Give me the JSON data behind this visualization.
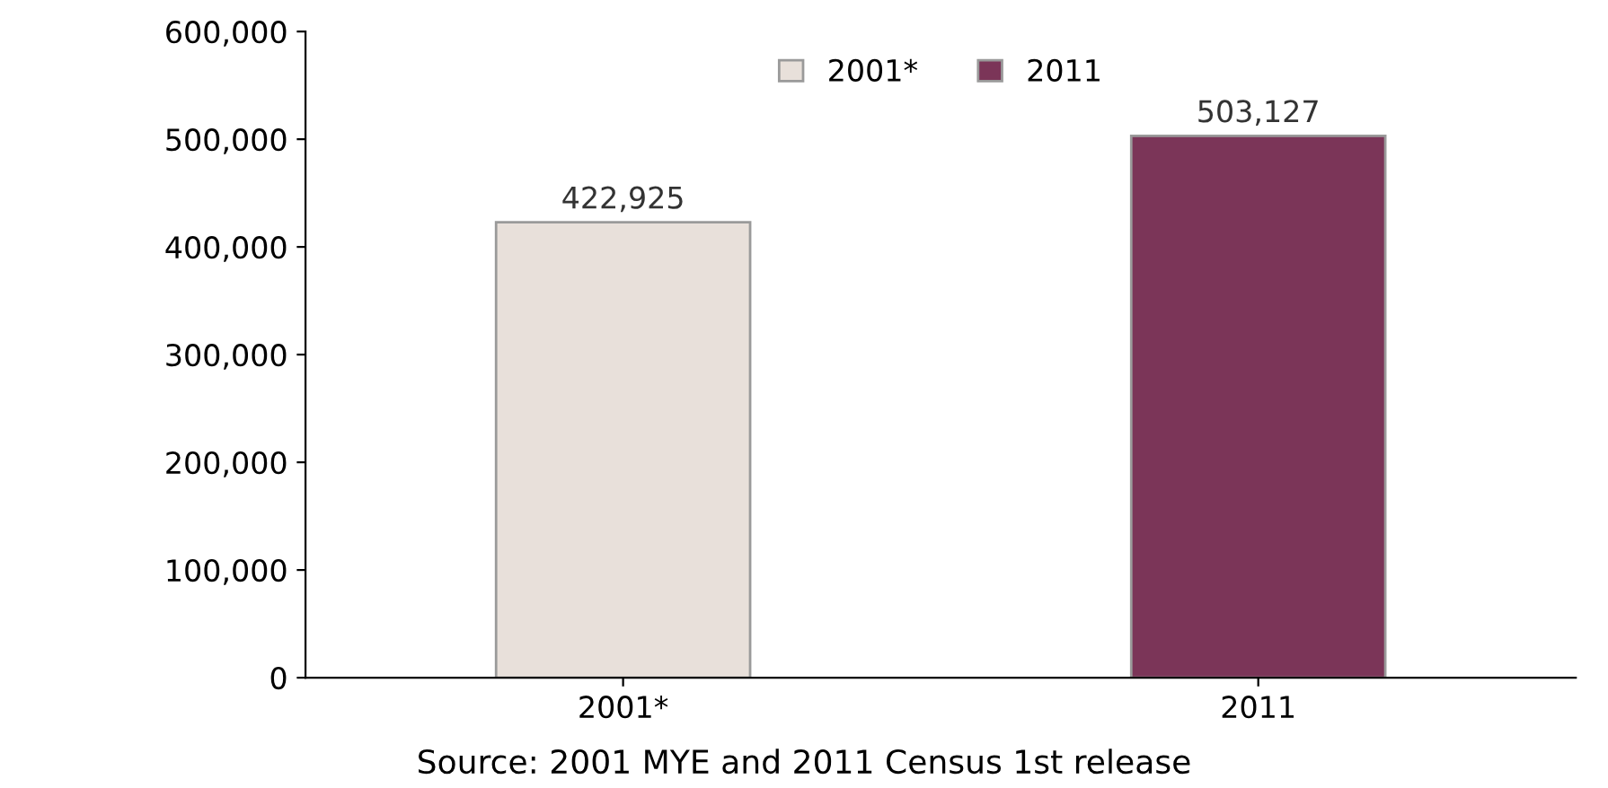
{
  "chart_data": {
    "type": "bar",
    "categories": [
      "2001*",
      "2011"
    ],
    "series": [
      {
        "name": "2001*",
        "color": "#e8e0da",
        "values": [
          422925,
          null
        ],
        "value_labels": [
          "422,925",
          null
        ]
      },
      {
        "name": "2011",
        "color": "#7b3558",
        "values": [
          null,
          503127
        ],
        "value_labels": [
          null,
          "503,127"
        ]
      }
    ],
    "ylim": [
      0,
      600000
    ],
    "yticks": [
      {
        "value": 0,
        "label": "0"
      },
      {
        "value": 100000,
        "label": "100,000"
      },
      {
        "value": 200000,
        "label": "200,000"
      },
      {
        "value": 300000,
        "label": "300,000"
      },
      {
        "value": 400000,
        "label": "400,000"
      },
      {
        "value": 500000,
        "label": "500,000"
      },
      {
        "value": 600000,
        "label": "600,000"
      }
    ],
    "grid": false,
    "legend": "top",
    "annotations": [
      "Source: 2001 MYE and 2011 Census 1st release"
    ]
  }
}
